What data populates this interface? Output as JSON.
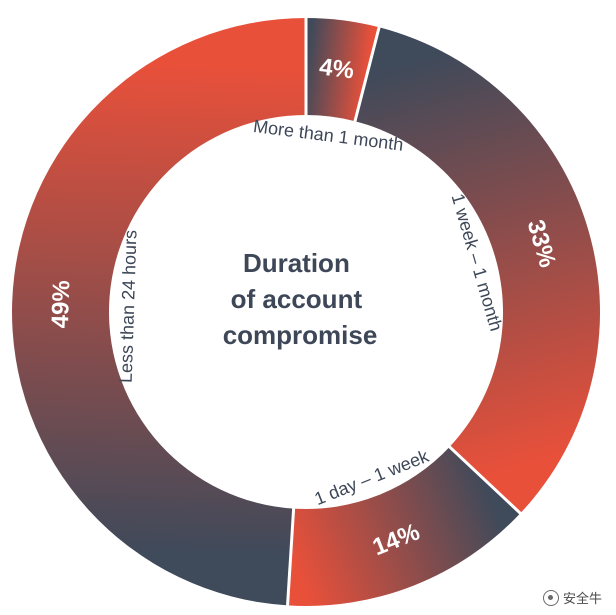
{
  "chart_data": {
    "type": "pie",
    "title": "Duration of account compromise",
    "title_lines": [
      "Duration",
      "of account",
      "compromise"
    ],
    "slices": [
      {
        "label": "More than 1 month",
        "value": 4,
        "value_label": "4%"
      },
      {
        "label": "1 week – 1 month",
        "value": 33,
        "value_label": "33%"
      },
      {
        "label": "1 day – 1 week",
        "value": 14,
        "value_label": "14%"
      },
      {
        "label": "Less than 24 hours",
        "value": 49,
        "value_label": "49%"
      }
    ],
    "colors": {
      "orange": "#e9503a",
      "slate": "#3f4a5a"
    }
  },
  "watermark": {
    "text": "安全牛",
    "icon": "wechat-logo-icon"
  }
}
